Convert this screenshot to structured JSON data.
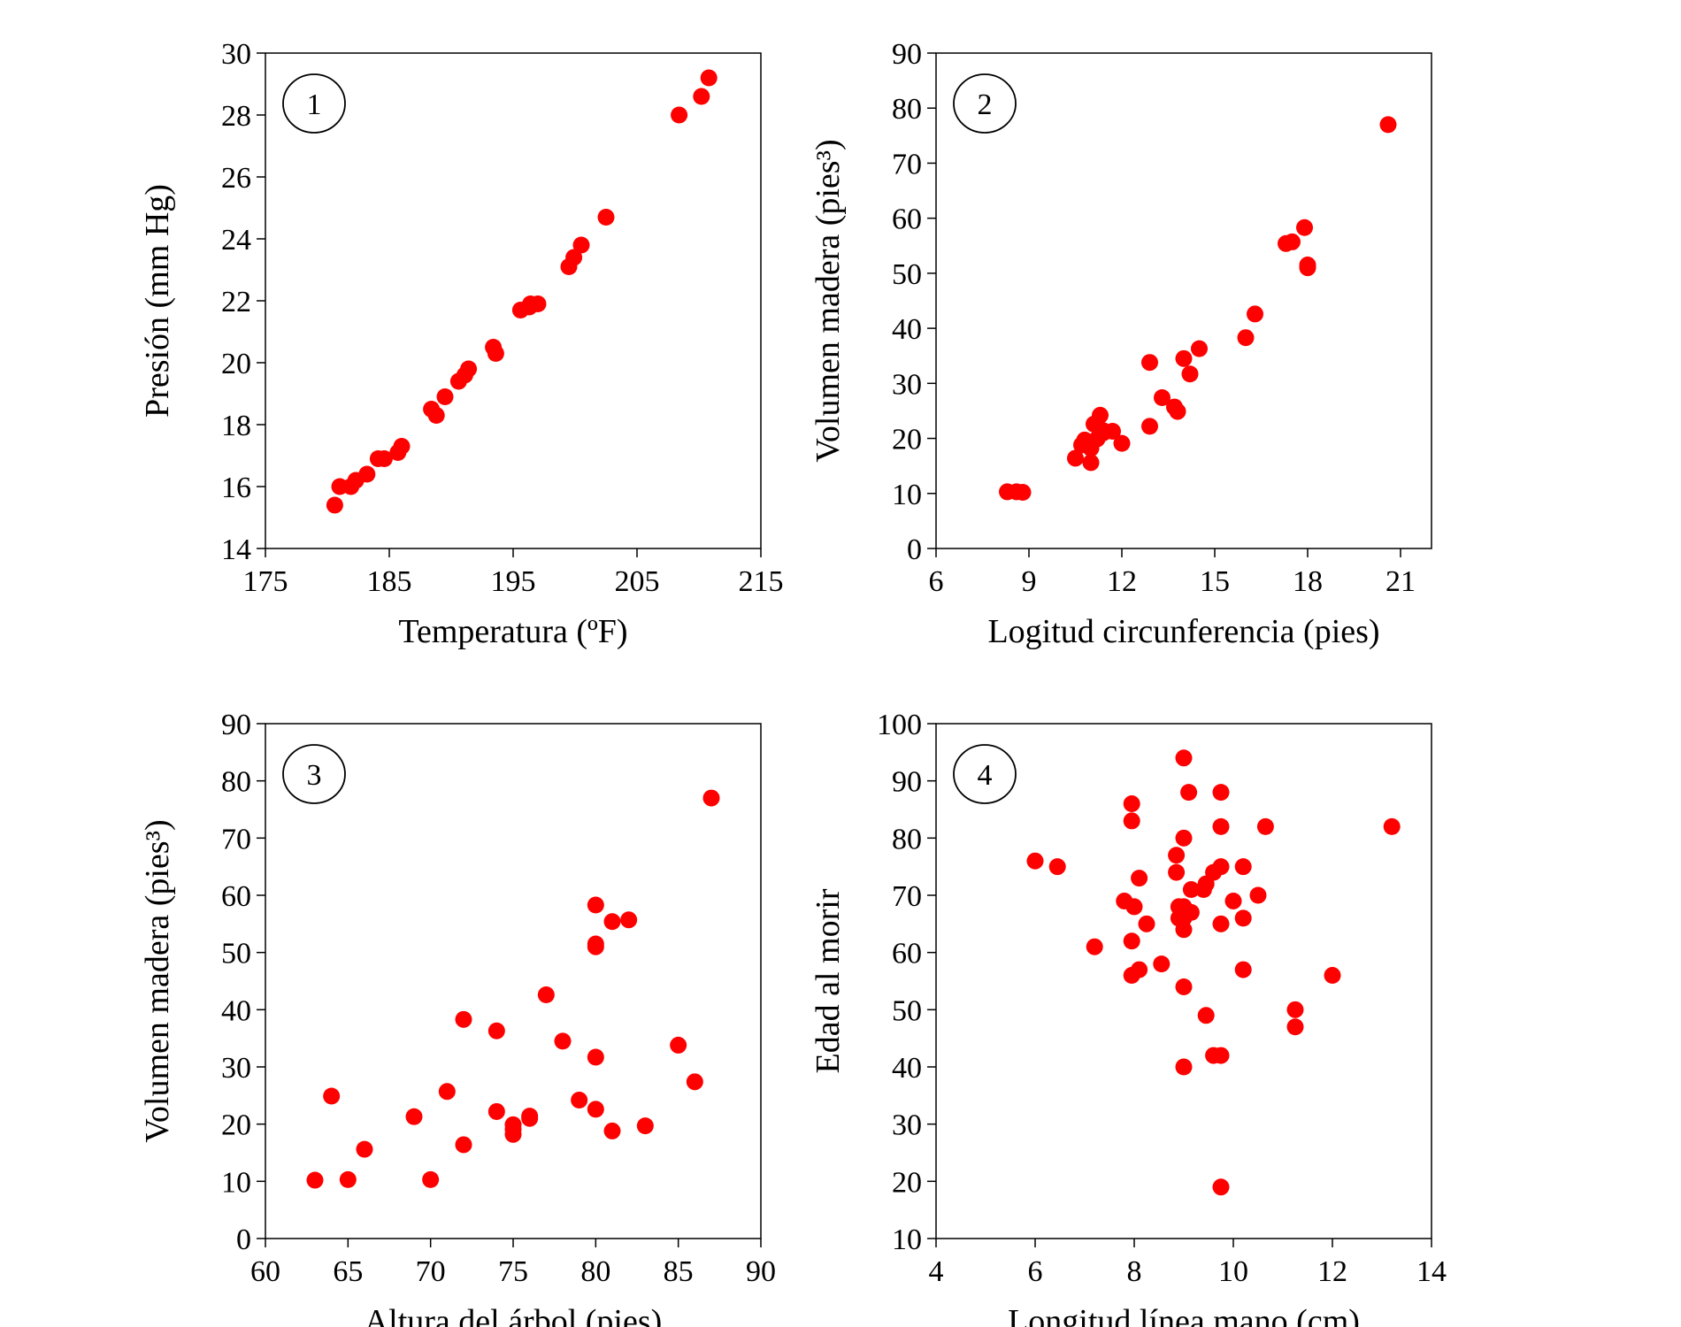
{
  "style": {
    "point_color": "#ff0000",
    "axis_color": "#000000"
  },
  "chart_data": [
    {
      "type": "scatter",
      "badge": "1",
      "xlabel": "Temperatura (ºF)",
      "ylabel": "Presión (mm Hg)",
      "xlim": [
        175,
        215
      ],
      "ylim": [
        14,
        30
      ],
      "xticks": [
        175,
        185,
        195,
        205,
        215
      ],
      "yticks": [
        14,
        16,
        18,
        20,
        22,
        24,
        26,
        28,
        30
      ],
      "x": [
        180.6,
        181.0,
        181.9,
        182.3,
        183.2,
        184.1,
        184.6,
        185.7,
        186.0,
        188.4,
        188.8,
        189.5,
        190.6,
        191.1,
        191.4,
        193.4,
        193.6,
        195.6,
        196.3,
        196.4,
        197.0,
        199.5,
        199.9,
        200.5,
        202.5,
        208.4,
        210.2,
        210.8
      ],
      "y": [
        15.4,
        16.0,
        16.0,
        16.2,
        16.4,
        16.9,
        16.9,
        17.1,
        17.3,
        18.5,
        18.3,
        18.9,
        19.4,
        19.6,
        19.8,
        20.5,
        20.3,
        21.7,
        21.8,
        21.9,
        21.9,
        23.1,
        23.4,
        23.8,
        24.7,
        28.0,
        28.6,
        29.2
      ]
    },
    {
      "type": "scatter",
      "badge": "2",
      "xlabel": "Logitud circunferencia (pies)",
      "ylabel": "Volumen madera (pies³)",
      "xlim": [
        6,
        22
      ],
      "ylim": [
        0,
        90
      ],
      "xticks": [
        6,
        9,
        12,
        15,
        18,
        21
      ],
      "yticks": [
        0,
        10,
        20,
        30,
        40,
        50,
        60,
        70,
        80,
        90
      ],
      "x": [
        8.3,
        8.6,
        8.8,
        10.5,
        10.7,
        10.8,
        11.0,
        11.0,
        11.1,
        11.2,
        11.3,
        11.4,
        11.4,
        11.7,
        12.0,
        12.9,
        12.9,
        13.3,
        13.7,
        13.8,
        14.0,
        14.2,
        14.5,
        16.0,
        16.3,
        17.3,
        17.5,
        17.9,
        18.0,
        18.0,
        20.6
      ],
      "y": [
        10.3,
        10.3,
        10.2,
        16.4,
        18.8,
        19.7,
        15.6,
        18.2,
        22.6,
        19.9,
        24.2,
        21.0,
        21.4,
        21.3,
        19.1,
        22.2,
        33.8,
        27.4,
        25.7,
        24.9,
        34.5,
        31.7,
        36.3,
        38.3,
        42.6,
        55.4,
        55.7,
        58.3,
        51.5,
        51.0,
        77.0
      ]
    },
    {
      "type": "scatter",
      "badge": "3",
      "xlabel": "Altura del árbol (pies)",
      "ylabel": "Volumen madera (pies³)",
      "xlim": [
        60,
        90
      ],
      "ylim": [
        0,
        90
      ],
      "xticks": [
        60,
        65,
        70,
        75,
        80,
        85,
        90
      ],
      "yticks": [
        0,
        10,
        20,
        30,
        40,
        50,
        60,
        70,
        80,
        90
      ],
      "x": [
        70,
        65,
        63,
        72,
        81,
        83,
        66,
        75,
        80,
        75,
        79,
        76,
        76,
        69,
        75,
        74,
        85,
        86,
        71,
        64,
        78,
        80,
        74,
        72,
        77,
        81,
        82,
        80,
        80,
        80,
        87
      ],
      "y": [
        10.3,
        10.3,
        10.2,
        16.4,
        18.8,
        19.7,
        15.6,
        18.2,
        22.6,
        19.9,
        24.2,
        21.0,
        21.4,
        21.3,
        19.1,
        22.2,
        33.8,
        27.4,
        25.7,
        24.9,
        34.5,
        31.7,
        36.3,
        38.3,
        42.6,
        55.4,
        55.7,
        58.3,
        51.5,
        51.0,
        77.0
      ]
    },
    {
      "type": "scatter",
      "badge": "4",
      "xlabel": "Longitud línea mano (cm)",
      "ylabel": "Edad al morir",
      "xlim": [
        4,
        14
      ],
      "ylim": [
        10,
        100
      ],
      "xticks": [
        4,
        6,
        8,
        10,
        12,
        14
      ],
      "yticks": [
        10,
        20,
        30,
        40,
        50,
        60,
        70,
        80,
        90,
        100
      ],
      "x": [
        9.0,
        9.1,
        9.75,
        7.95,
        7.95,
        9.0,
        9.75,
        10.65,
        13.2,
        6.0,
        6.45,
        8.85,
        8.85,
        9.75,
        9.6,
        9.45,
        10.2,
        10.5,
        8.1,
        7.8,
        8.0,
        9.15,
        9.4,
        9.0,
        10.0,
        8.9,
        9.0,
        9.15,
        10.2,
        8.25,
        8.9,
        9.75,
        9.0,
        7.95,
        7.2,
        8.55,
        8.1,
        7.95,
        10.2,
        12.0,
        9.0,
        11.25,
        11.25,
        9.45,
        9.6,
        9.75,
        9.0,
        9.75
      ],
      "y": [
        94,
        88,
        88,
        86,
        83,
        80,
        82,
        82,
        82,
        76,
        75,
        77,
        74,
        75,
        74,
        72,
        75,
        70,
        73,
        69,
        68,
        71,
        71,
        68,
        69,
        68,
        66,
        67,
        66,
        65,
        66,
        65,
        64,
        62,
        61,
        58,
        57,
        56,
        57,
        56,
        54,
        50,
        47,
        49,
        42,
        42,
        40,
        19
      ]
    }
  ]
}
